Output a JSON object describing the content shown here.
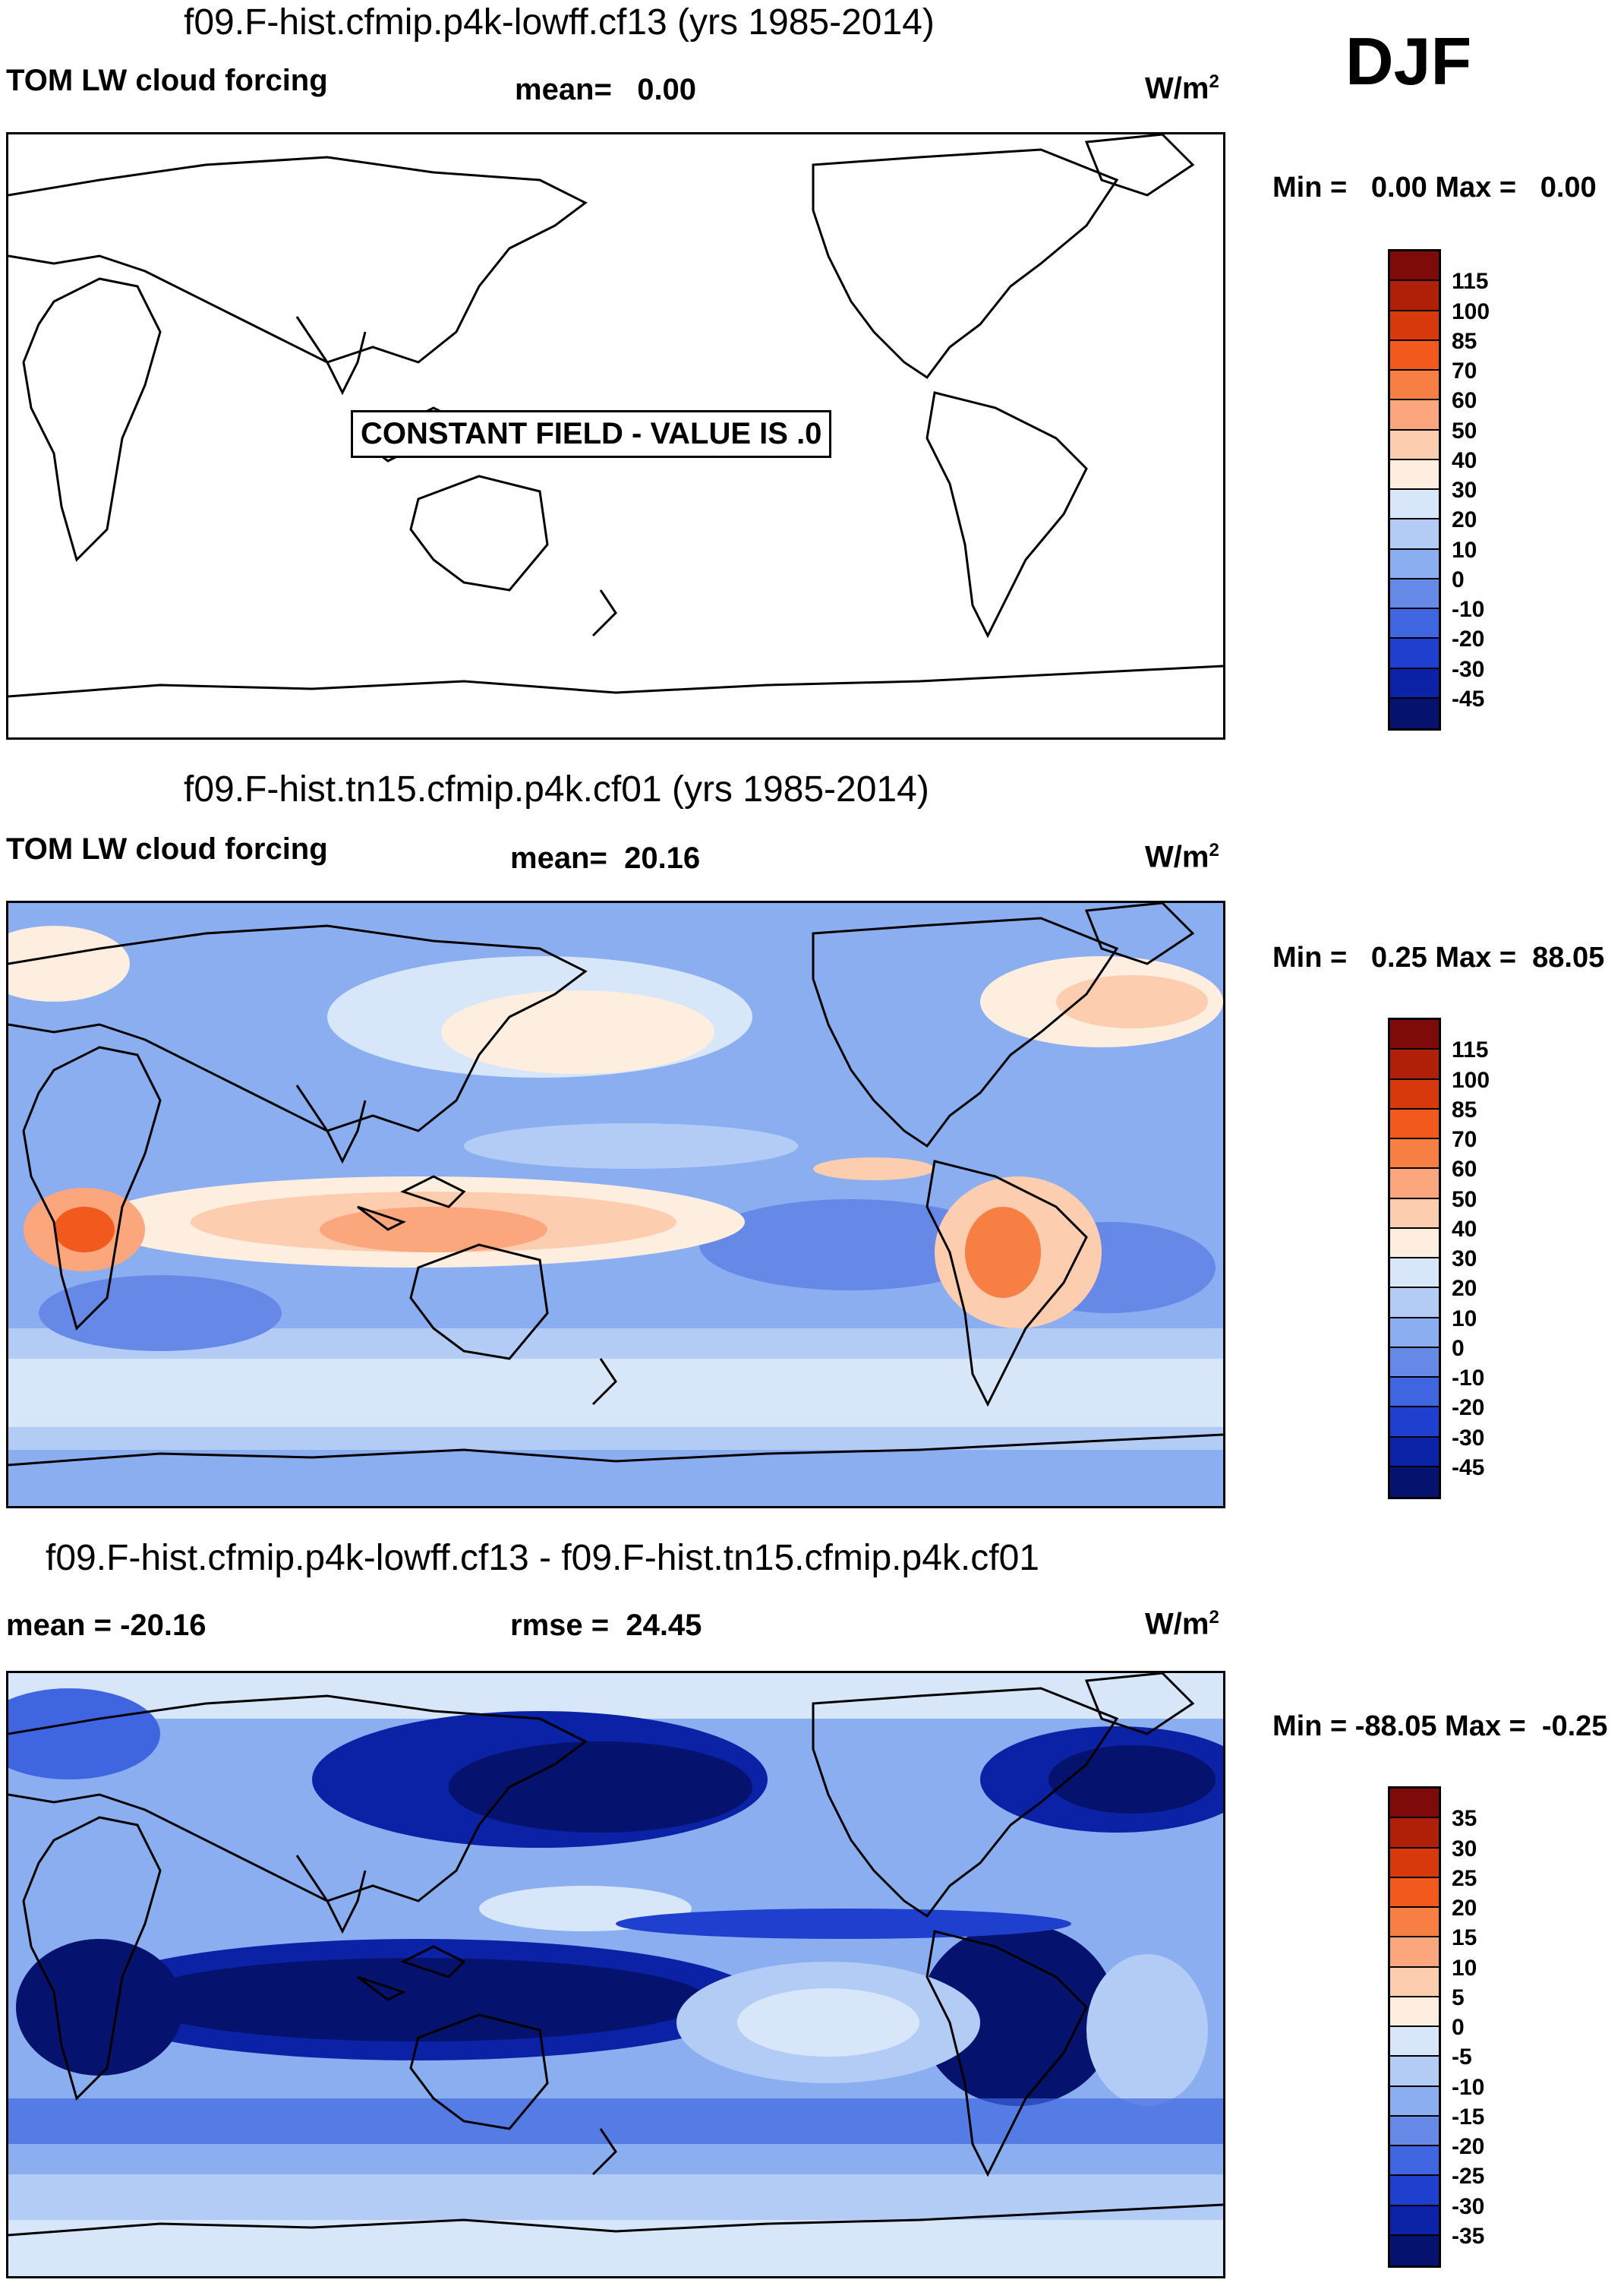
{
  "season": "DJF",
  "panels": [
    {
      "id": "p1",
      "title": "f09.F-hist.cfmip.p4k-lowff.cf13 (yrs 1985-2014)",
      "variable": "TOM LW cloud forcing",
      "stat": "mean=   0.00",
      "units": "W/m",
      "units_sup": "2",
      "minmax": "Min =   0.00 Max =   0.00",
      "note": "CONSTANT FIELD - VALUE IS .0",
      "ticks": [
        "115",
        "100",
        "85",
        "70",
        "60",
        "50",
        "40",
        "30",
        "20",
        "10",
        "0",
        "-10",
        "-20",
        "-30",
        "-45"
      ]
    },
    {
      "id": "p2",
      "title": "f09.F-hist.tn15.cfmip.p4k.cf01 (yrs 1985-2014)",
      "variable": "TOM LW cloud forcing",
      "stat": "mean=  20.16",
      "units": "W/m",
      "units_sup": "2",
      "minmax": "Min =   0.25 Max =  88.05",
      "ticks": [
        "115",
        "100",
        "85",
        "70",
        "60",
        "50",
        "40",
        "30",
        "20",
        "10",
        "0",
        "-10",
        "-20",
        "-30",
        "-45"
      ]
    },
    {
      "id": "p3",
      "title": "f09.F-hist.cfmip.p4k-lowff.cf13 - f09.F-hist.tn15.cfmip.p4k.cf01",
      "stat_left": "mean = -20.16",
      "stat": "rmse =  24.45",
      "units": "W/m",
      "units_sup": "2",
      "minmax": "Min = -88.05 Max =  -0.25",
      "ticks": [
        "35",
        "30",
        "25",
        "20",
        "15",
        "10",
        "5",
        "0",
        "-5",
        "-10",
        "-15",
        "-20",
        "-25",
        "-30",
        "-35"
      ]
    }
  ],
  "colors": {
    "scale": [
      "#7f0a0a",
      "#b01f08",
      "#d8390c",
      "#f2591c",
      "#f77f44",
      "#fba67c",
      "#fdcdb0",
      "#fdeedf",
      "#d8e6fa",
      "#b2ccf6",
      "#8aaef0",
      "#6689e8",
      "#3f66e0",
      "#1f3fcf",
      "#0b21a6",
      "#06136e"
    ],
    "frame": "#000000"
  }
}
